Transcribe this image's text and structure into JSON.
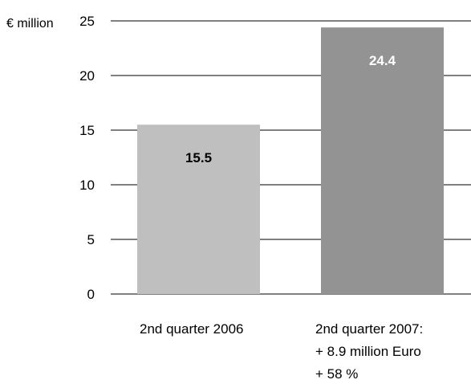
{
  "chart_data": {
    "type": "bar",
    "unit_label": "€ million",
    "ylim": [
      0,
      25
    ],
    "yticks": [
      0,
      5,
      10,
      15,
      20,
      25
    ],
    "grid": true,
    "categories": [
      "2nd quarter 2006",
      "2nd quarter 2007:"
    ],
    "category_notes": [
      [],
      [
        "+ 8.9 million Euro",
        "+ 58 %"
      ]
    ],
    "values": [
      15.5,
      24.4
    ],
    "data_labels": [
      "15.5",
      "24.4"
    ],
    "colors": {
      "bars": [
        "#bfbfbf",
        "#939393"
      ],
      "data_labels": [
        "#000000",
        "#ffffff"
      ],
      "grid": "#000000"
    }
  }
}
